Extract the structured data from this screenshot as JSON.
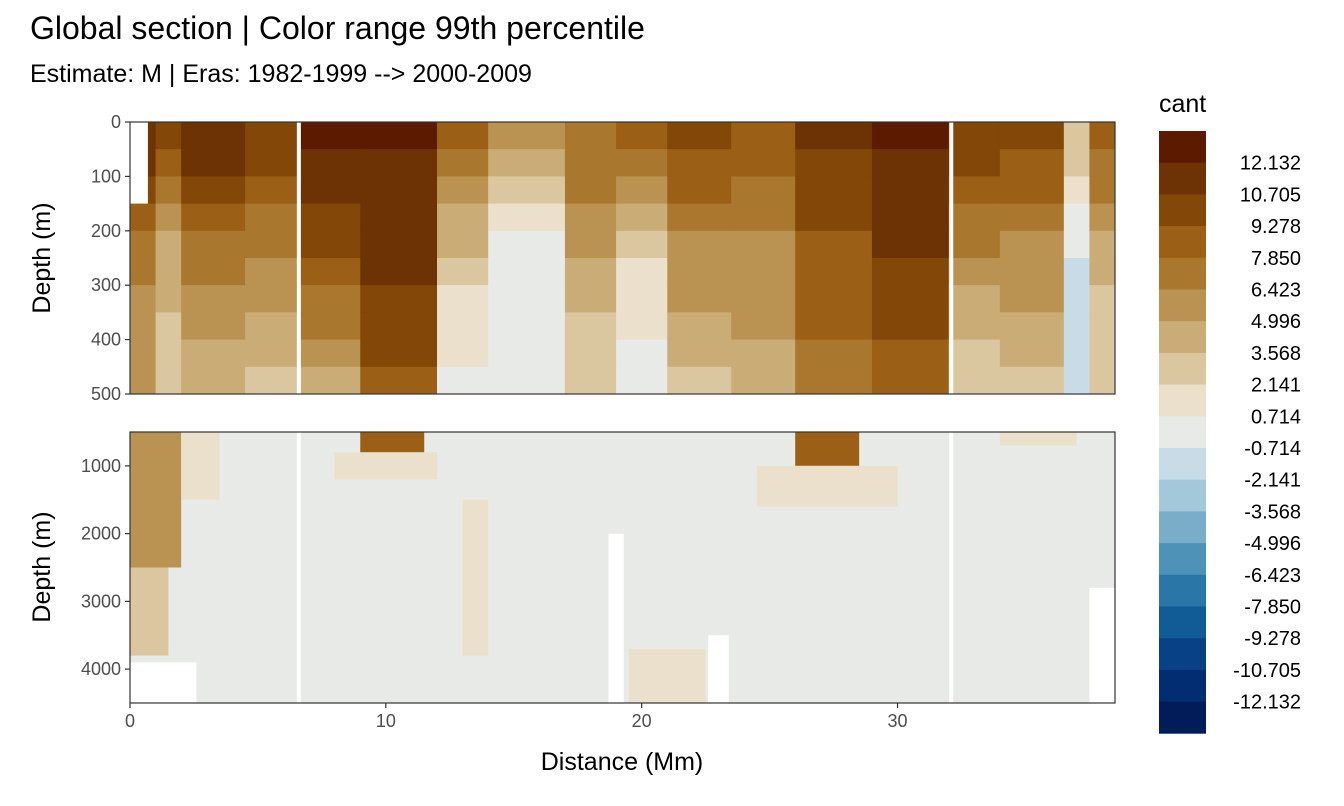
{
  "title": "Global section | Color range 99th percentile",
  "subtitle": "Estimate: M  | Eras: 1982-1999 --> 2000-2009",
  "chart_data": {
    "type": "heatmap",
    "title": "Global section | Color range 99th percentile",
    "subtitle": "Estimate: M  | Eras: 1982-1999 --> 2000-2009",
    "xlabel": "Distance (Mm)",
    "ylabel": "Depth (m)",
    "xlim": [
      0,
      38.5
    ],
    "x_ticks": [
      "0",
      "10",
      "20",
      "30"
    ],
    "x_tick_values": [
      0,
      10,
      20,
      30
    ],
    "panels": [
      {
        "name": "upper",
        "ylim": [
          0,
          500
        ],
        "y_ticks": [
          "0",
          "100",
          "200",
          "300",
          "400",
          "500"
        ],
        "y_tick_values": [
          0,
          100,
          200,
          300,
          400,
          500
        ]
      },
      {
        "name": "lower",
        "ylim": [
          500,
          4500
        ],
        "y_ticks": [
          "1000",
          "2000",
          "3000",
          "4000"
        ],
        "y_tick_values": [
          1000,
          2000,
          3000,
          4000
        ]
      }
    ],
    "legend": {
      "title": "cant",
      "position": "right",
      "breaks": [
        "12.132",
        "10.705",
        "9.278",
        "7.850",
        "6.423",
        "4.996",
        "3.568",
        "2.141",
        "0.714",
        "-0.714",
        "-2.141",
        "-3.568",
        "-4.996",
        "-6.423",
        "-7.850",
        "-9.278",
        "-10.705",
        "-12.132"
      ],
      "break_values": [
        12.132,
        10.705,
        9.278,
        7.85,
        6.423,
        4.996,
        3.568,
        2.141,
        0.714,
        -0.714,
        -2.141,
        -3.568,
        -4.996,
        -6.423,
        -7.85,
        -9.278,
        -10.705,
        -12.132
      ],
      "colors": [
        "#5c1b01",
        "#6e3304",
        "#834708",
        "#9b6015",
        "#a9782e",
        "#ba9353",
        "#caac76",
        "#dbc79f",
        "#eae0cc",
        "#e8eae7",
        "#c8dce8",
        "#a3c8da",
        "#79adc8",
        "#4f92b7",
        "#2a76a6",
        "#115b96",
        "#094187",
        "#032d72",
        "#011c58"
      ]
    },
    "gaps_x": [
      6.6,
      32.1
    ],
    "upper_columns": [
      {
        "x": [
          0,
          1
        ],
        "shallow": 12.5,
        "mid": 7,
        "deep": 5
      },
      {
        "x": [
          1,
          2
        ],
        "shallow": 11,
        "mid": 4,
        "deep": 3
      },
      {
        "x": [
          2,
          4.5
        ],
        "shallow": 12.5,
        "mid": 7,
        "deep": 4
      },
      {
        "x": [
          4.5,
          6.6
        ],
        "shallow": 11,
        "mid": 6,
        "deep": 3
      },
      {
        "x": [
          6.6,
          9
        ],
        "shallow": 12.5,
        "mid": 9,
        "deep": 4
      },
      {
        "x": [
          9,
          12
        ],
        "shallow": 12.5,
        "mid": 11,
        "deep": 9
      },
      {
        "x": [
          12,
          14
        ],
        "shallow": 9,
        "mid": 3,
        "deep": 0
      },
      {
        "x": [
          14,
          17
        ],
        "shallow": 7,
        "mid": 0,
        "deep": 0
      },
      {
        "x": [
          17,
          19
        ],
        "shallow": 8,
        "mid": 5,
        "deep": 2
      },
      {
        "x": [
          19,
          21
        ],
        "shallow": 9,
        "mid": 2,
        "deep": 0
      },
      {
        "x": [
          21,
          23.5
        ],
        "shallow": 10,
        "mid": 6,
        "deep": 3
      },
      {
        "x": [
          23.5,
          26
        ],
        "shallow": 9,
        "mid": 6,
        "deep": 4
      },
      {
        "x": [
          26,
          29
        ],
        "shallow": 11,
        "mid": 9,
        "deep": 7
      },
      {
        "x": [
          29,
          32
        ],
        "shallow": 12.5,
        "mid": 11,
        "deep": 8
      },
      {
        "x": [
          32,
          34
        ],
        "shallow": 11,
        "mid": 6,
        "deep": 2
      },
      {
        "x": [
          34,
          36.5
        ],
        "shallow": 10,
        "mid": 6,
        "deep": 3
      },
      {
        "x": [
          36.5,
          37.5
        ],
        "shallow": 4,
        "mid": -1,
        "deep": -1
      },
      {
        "x": [
          37.5,
          38.5
        ],
        "shallow": 9,
        "mid": 4,
        "deep": 2
      }
    ]
  }
}
